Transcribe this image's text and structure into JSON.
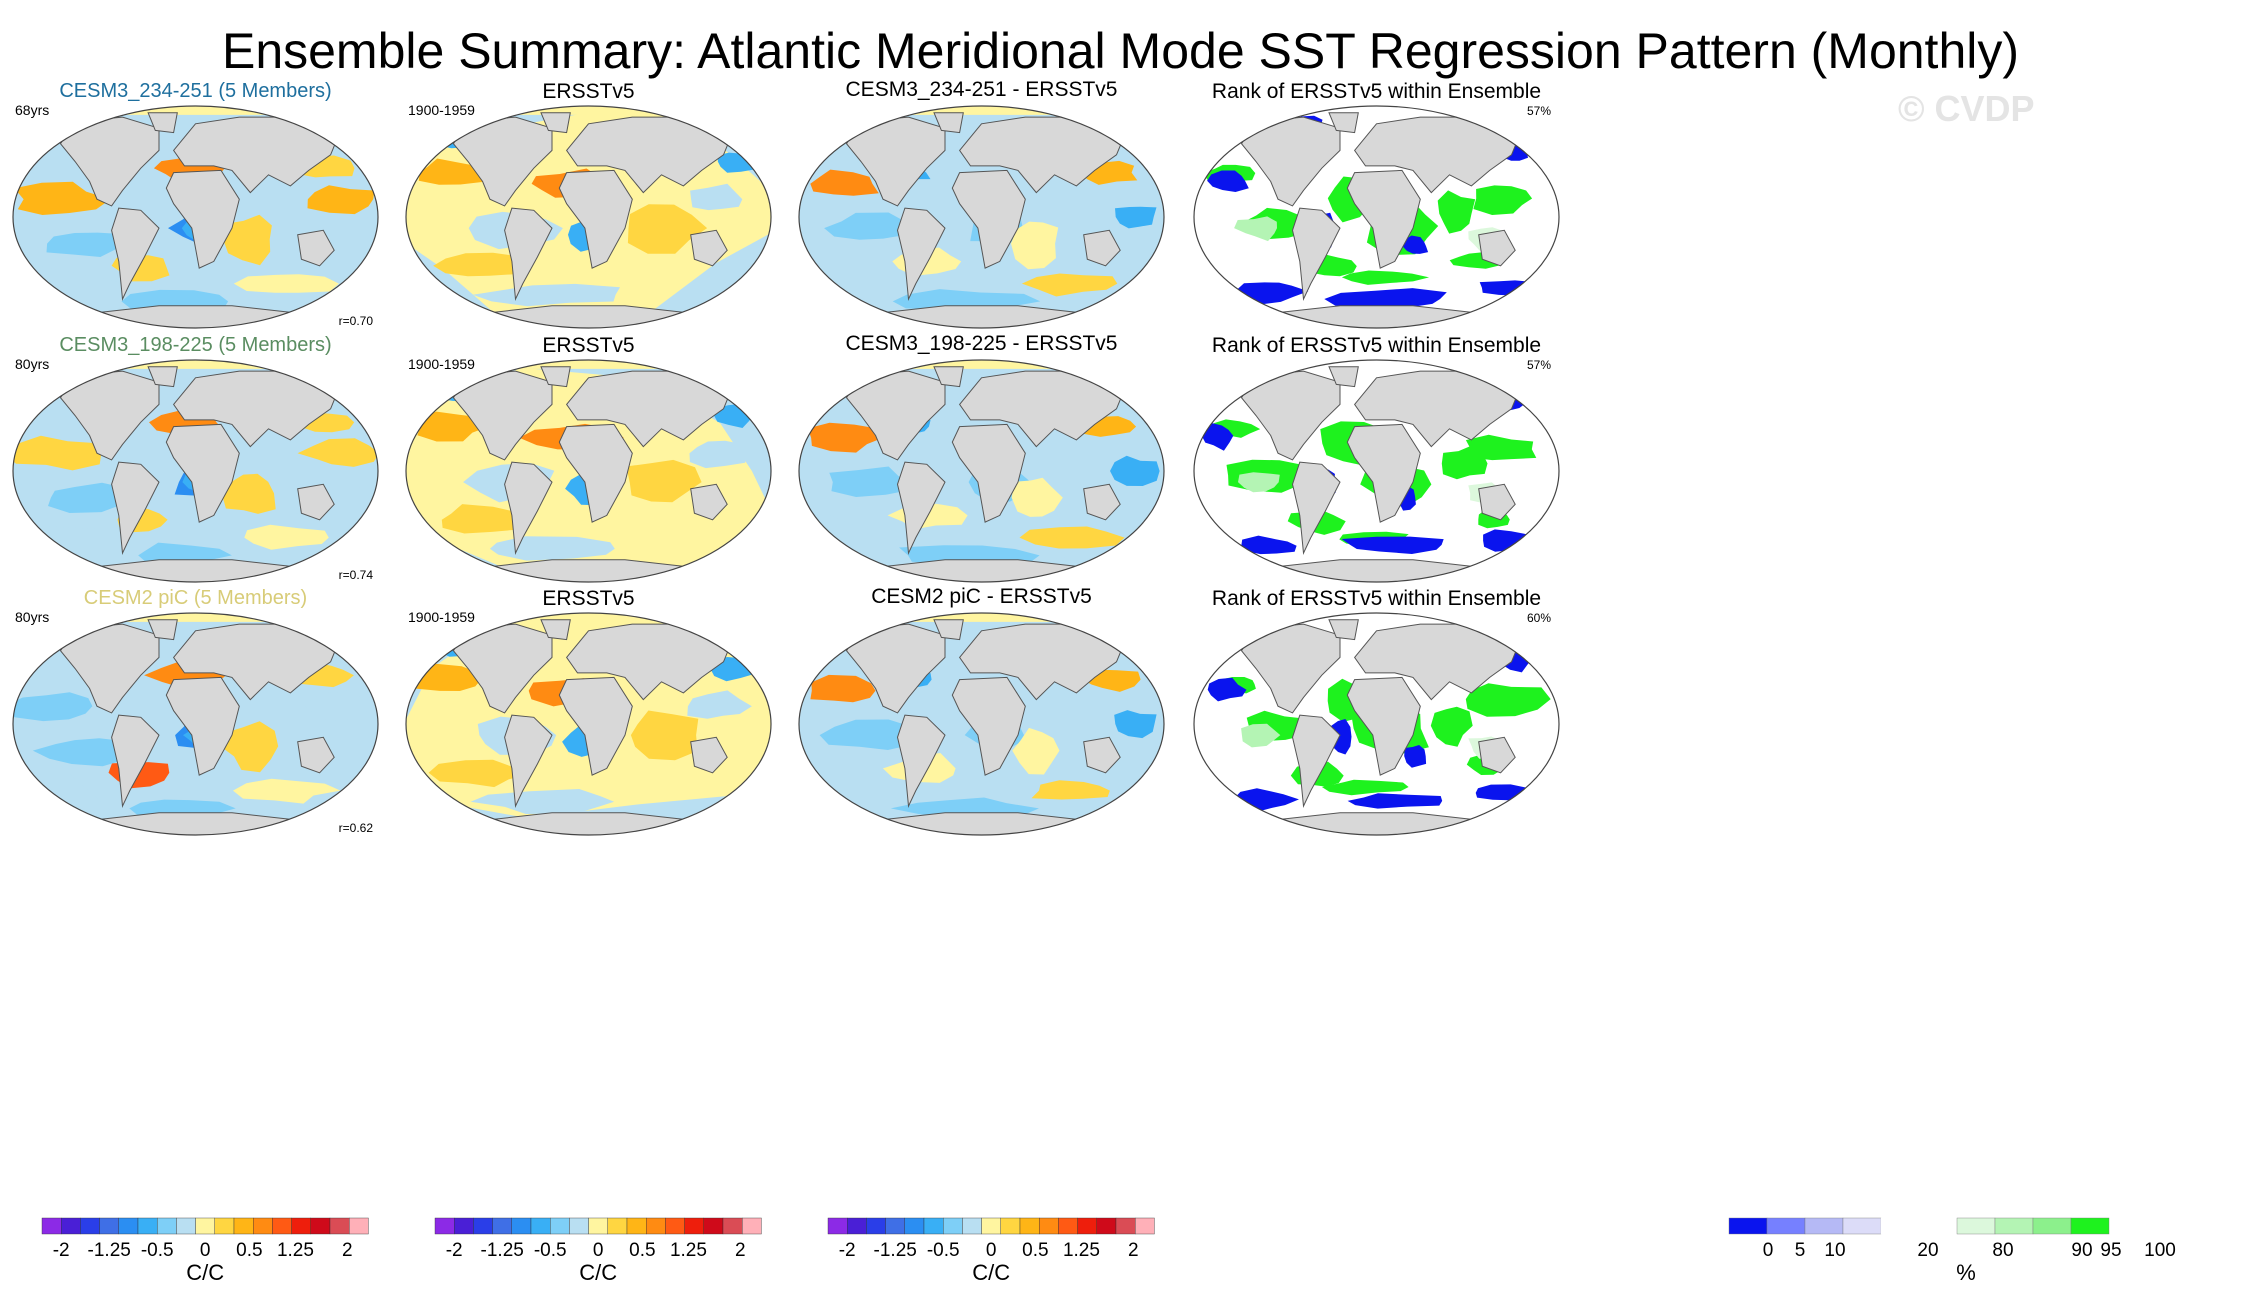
{
  "title": "Ensemble Summary: Atlantic Meridional Mode SST Regression Pattern (Monthly)",
  "watermark": "© CVDP",
  "colors": {
    "regression_colorbar": [
      "#8c2ae6",
      "#4a1fd6",
      "#2a3ee8",
      "#3f6fe6",
      "#2b8ef2",
      "#39aff5",
      "#7ecff7",
      "#b9dff2",
      "#fff5a0",
      "#ffd641",
      "#ffb516",
      "#ff8b12",
      "#ff5a14",
      "#ee1e0c",
      "#cf0a1a",
      "#da4c55",
      "#ffb0b8"
    ],
    "rank_colorbar": [
      "#0a14ee",
      "#7680ff",
      "#b5b9f5",
      "#dcdcf8",
      "#ffffff",
      "#ffffff",
      "#dcf8dc",
      "#b4f4b4",
      "#8cf08c",
      "#1ef21e"
    ],
    "land": "#d8d8d8",
    "coast": "#555555"
  },
  "chart_data": {
    "type": "heatmap",
    "rows": [
      {
        "model_title": "CESM3_234-251 (5 Members)",
        "model_title_color": "#1e6f9e",
        "model_years": "68yrs",
        "model_corr": "r=0.70",
        "obs_title": "ERSSTv5",
        "obs_years": "1900-1959",
        "diff_title": "CESM3_234-251 - ERSSTv5",
        "rank_title": "Rank of ERSSTv5 within Ensemble",
        "rank_pct": "57%"
      },
      {
        "model_title": "CESM3_198-225 (5 Members)",
        "model_title_color": "#5a8d61",
        "model_years": "80yrs",
        "model_corr": "r=0.74",
        "obs_title": "ERSSTv5",
        "obs_years": "1900-1959",
        "diff_title": "CESM3_198-225 - ERSSTv5",
        "rank_title": "Rank of ERSSTv5 within Ensemble",
        "rank_pct": "57%"
      },
      {
        "model_title": "CESM2 piC (5 Members)",
        "model_title_color": "#d8cc78",
        "model_years": "80yrs",
        "model_corr": "r=0.62",
        "obs_title": "ERSSTv5",
        "obs_years": "1900-1959",
        "diff_title": "CESM2 piC - ERSSTv5",
        "rank_title": "Rank of ERSSTv5 within Ensemble",
        "rank_pct": "60%"
      }
    ],
    "regression_ticks": [
      "-2",
      "-1.25",
      "-0.5",
      "0",
      "0.5",
      "1.25",
      "2"
    ],
    "regression_units": "C/C",
    "rank_ticks": [
      "0",
      "5",
      "10",
      "20",
      "80",
      "90",
      "95",
      "100"
    ],
    "rank_units": "%"
  }
}
